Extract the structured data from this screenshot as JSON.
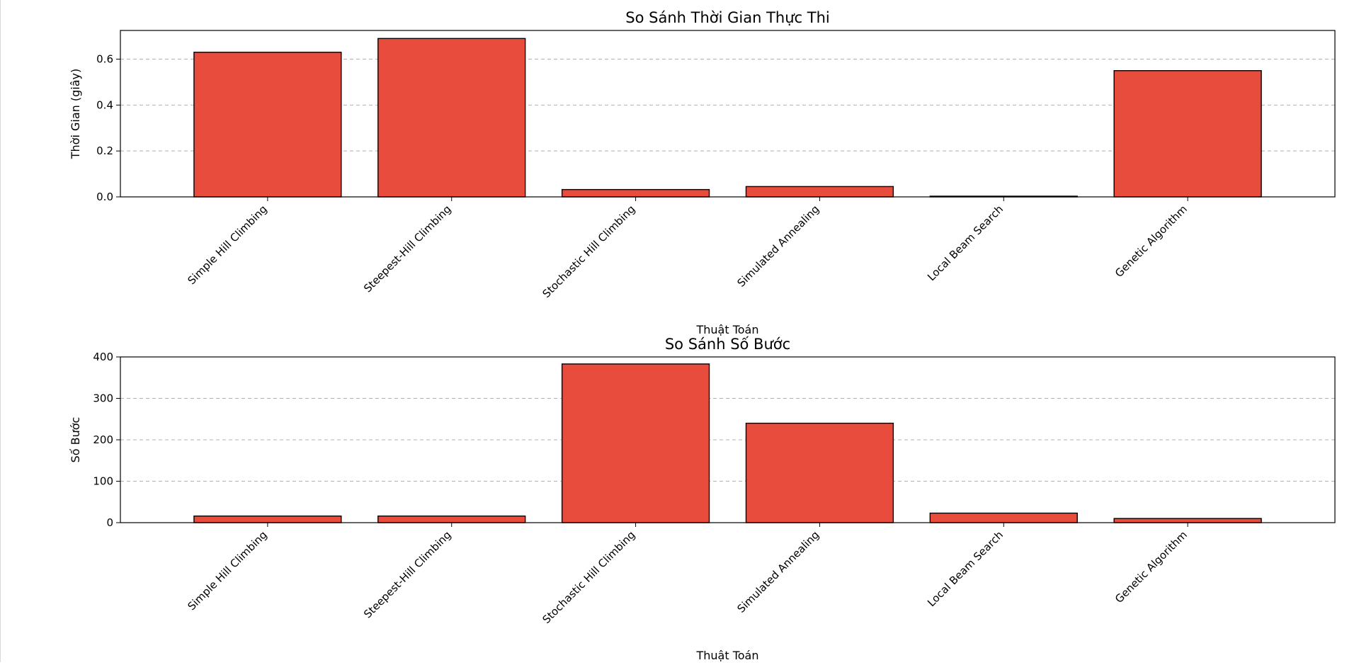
{
  "style": {
    "bar_color": "#e74c3c",
    "bar_edge_color": "#000000",
    "grid_color": "#b0b0b0",
    "grid_style": "dashed"
  },
  "chart_data": [
    {
      "type": "bar",
      "title": "So Sánh Thời Gian Thực Thi",
      "xlabel": "Thuật Toán",
      "ylabel": "Thời Gian (giây)",
      "categories": [
        "Simple Hill Climbing",
        "Steepest-Hill Climbing",
        "Stochastic Hill Climbing",
        "Simulated Annealing",
        "Local Beam Search",
        "Genetic Algorithm"
      ],
      "values": [
        0.63,
        0.69,
        0.032,
        0.045,
        0.003,
        0.55
      ],
      "ylim": [
        0,
        0.725
      ],
      "yticks": [
        0.0,
        0.2,
        0.4,
        0.6
      ],
      "ytick_labels": [
        "0.0",
        "0.2",
        "0.4",
        "0.6"
      ],
      "grid": "y",
      "legend": "none"
    },
    {
      "type": "bar",
      "title": "So Sánh Số Bước",
      "xlabel": "Thuật Toán",
      "ylabel": "Số Bước",
      "categories": [
        "Simple Hill Climbing",
        "Steepest-Hill Climbing",
        "Stochastic Hill Climbing",
        "Simulated Annealing",
        "Local Beam Search",
        "Genetic Algorithm"
      ],
      "values": [
        16,
        16,
        383,
        240,
        23,
        10
      ],
      "ylim": [
        0,
        400
      ],
      "yticks": [
        0,
        100,
        200,
        300,
        400
      ],
      "ytick_labels": [
        "0",
        "100",
        "200",
        "300",
        "400"
      ],
      "grid": "y",
      "legend": "none"
    }
  ]
}
